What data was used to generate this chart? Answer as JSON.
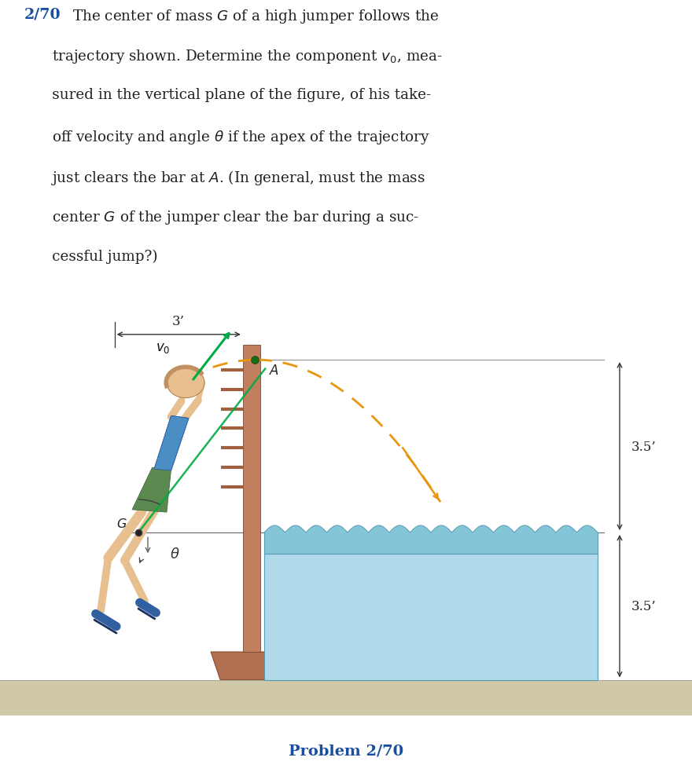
{
  "background_color": "#ffffff",
  "title_number_color": "#1a4fa0",
  "title_fontsize": 13.2,
  "problem_label": "Problem 2/70",
  "problem_label_color": "#1a4fa0",
  "problem_label_fontsize": 14,
  "dim_3ft_label": "3’",
  "dim_35_top_label": "3.5’",
  "dim_35_bot_label": "3.5’",
  "ground_color": "#cfc9a8",
  "pole_color": "#c08060",
  "pole_base_color": "#b07050",
  "bracket_color": "#a06040",
  "mat_top_color": "#85c5d8",
  "mat_body_color": "#b0daea",
  "mat_outline_color": "#5a9ab5",
  "trajectory_color": "#e8960e",
  "velocity_arrow_color": "#00aa44",
  "dim_line_color": "#333333",
  "G_dot_color": "#222222",
  "A_dot_color": "#1a6a1a",
  "skin_color": "#e8c090",
  "shirt_color": "#4a8ec4",
  "shorts_color": "#5a8a50",
  "shoe_color": "#3060a0",
  "hair_color": "#c09060"
}
